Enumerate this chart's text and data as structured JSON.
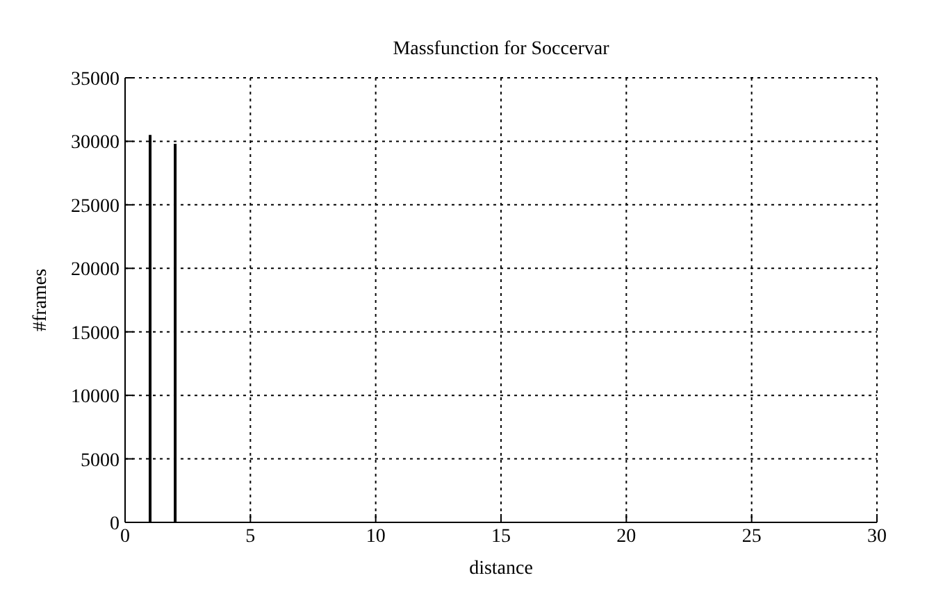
{
  "chart_data": {
    "type": "bar",
    "title": "Massfunction for Soccervar",
    "xlabel": "distance",
    "ylabel": "#frames",
    "x": [
      1,
      2
    ],
    "series": [
      {
        "color": "#000000",
        "values": [
          30500,
          29800
        ]
      }
    ],
    "xlim": [
      0,
      30
    ],
    "xticks": [
      0,
      5,
      10,
      15,
      20,
      25,
      30
    ],
    "ylim": [
      0,
      35000
    ],
    "yticks": [
      0,
      5000,
      10000,
      15000,
      20000,
      25000,
      30000,
      35000
    ],
    "grid": true
  }
}
